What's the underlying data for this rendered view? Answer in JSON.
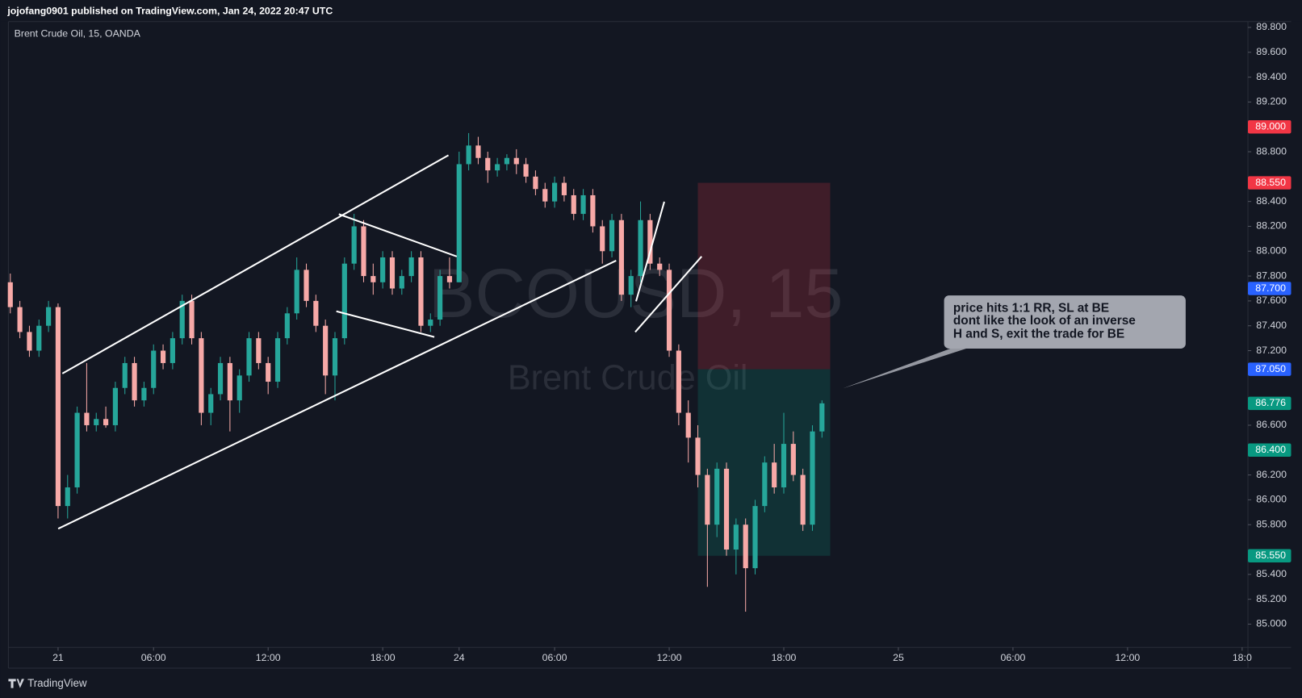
{
  "chart_data": {
    "type": "candlestick",
    "header": "jojofang0901 published on TradingView.com, Jan 24, 2022 20:47 UTC",
    "title": "Brent Crude Oil, 15, OANDA",
    "watermark_symbol": "BCOUSD, 15",
    "watermark_name": "Brent Crude Oil",
    "footer": "TradingView",
    "up_color": "#26a69a",
    "down_color": "#f7a9a7",
    "xlim": [
      -1.6,
      63.26
    ],
    "xticks": [
      {
        "value": 1,
        "label": "21"
      },
      {
        "value": 6,
        "label": "06:00"
      },
      {
        "value": 12,
        "label": "12:00"
      },
      {
        "value": 18,
        "label": "18:00"
      },
      {
        "value": 22,
        "label": "24"
      },
      {
        "value": 27,
        "label": "06:00"
      },
      {
        "value": 33,
        "label": "12:00"
      },
      {
        "value": 39,
        "label": "18:00"
      },
      {
        "value": 45,
        "label": "25"
      },
      {
        "value": 51,
        "label": "06:00"
      },
      {
        "value": 57,
        "label": "12:00"
      },
      {
        "value": 63,
        "label": "18:0"
      }
    ],
    "ylim": [
      84.813,
      89.847
    ],
    "yticks": [
      {
        "value": 89.8,
        "label": "89.800"
      },
      {
        "value": 89.6,
        "label": "89.600"
      },
      {
        "value": 89.4,
        "label": "89.400"
      },
      {
        "value": 89.2,
        "label": "89.200"
      },
      {
        "value": 88.8,
        "label": "88.800"
      },
      {
        "value": 88.4,
        "label": "88.400"
      },
      {
        "value": 88.2,
        "label": "88.200"
      },
      {
        "value": 88.0,
        "label": "88.000"
      },
      {
        "value": 87.8,
        "label": "87.800"
      },
      {
        "value": 87.6,
        "label": "87.600"
      },
      {
        "value": 87.4,
        "label": "87.400"
      },
      {
        "value": 87.2,
        "label": "87.200"
      },
      {
        "value": 86.6,
        "label": "86.600"
      },
      {
        "value": 86.2,
        "label": "86.200"
      },
      {
        "value": 86.0,
        "label": "86.000"
      },
      {
        "value": 85.8,
        "label": "85.800"
      },
      {
        "value": 85.4,
        "label": "85.400"
      },
      {
        "value": 85.2,
        "label": "85.200"
      },
      {
        "value": 85.0,
        "label": "85.000"
      }
    ],
    "price_labels": [
      {
        "value": 89.0,
        "label": "89.000",
        "color": "#f23645"
      },
      {
        "value": 88.55,
        "label": "88.550",
        "color": "#f23645"
      },
      {
        "value": 87.7,
        "label": "87.700",
        "color": "#2962ff"
      },
      {
        "value": 87.05,
        "label": "87.050",
        "color": "#2962ff"
      },
      {
        "value": 86.776,
        "label": "86.776",
        "color": "#089981"
      },
      {
        "value": 86.4,
        "label": "86.400",
        "color": "#089981"
      },
      {
        "value": 85.55,
        "label": "85.550",
        "color": "#089981"
      }
    ],
    "position": {
      "stop": 88.55,
      "entry": 87.05,
      "target": 85.55,
      "x": [
        34.5,
        41.43
      ]
    },
    "annotation": [
      "price hits 1:1 RR, SL at BE",
      "dont like the look of an inverse",
      "H and S, exit the trade for BE"
    ],
    "candles": [
      [
        -1.5,
        87.75,
        87.82,
        87.5,
        87.55
      ],
      [
        -1,
        87.55,
        87.6,
        87.3,
        87.35
      ],
      [
        -0.5,
        87.35,
        87.4,
        87.15,
        87.2
      ],
      [
        0,
        87.2,
        87.45,
        87.15,
        87.4
      ],
      [
        0.5,
        87.4,
        87.6,
        87.35,
        87.55
      ],
      [
        1,
        87.55,
        87.58,
        85.85,
        85.95
      ],
      [
        1.5,
        85.95,
        86.2,
        85.85,
        86.1
      ],
      [
        2,
        86.1,
        86.75,
        86.05,
        86.7
      ],
      [
        2.5,
        86.7,
        87.1,
        86.55,
        86.6
      ],
      [
        3,
        86.6,
        86.7,
        86.55,
        86.65
      ],
      [
        3.5,
        86.65,
        86.75,
        86.58,
        86.6
      ],
      [
        4,
        86.6,
        86.95,
        86.55,
        86.9
      ],
      [
        4.5,
        86.9,
        87.15,
        86.85,
        87.1
      ],
      [
        5,
        87.1,
        87.15,
        86.75,
        86.8
      ],
      [
        5.5,
        86.8,
        86.95,
        86.75,
        86.9
      ],
      [
        6,
        86.9,
        87.25,
        86.85,
        87.2
      ],
      [
        6.5,
        87.2,
        87.25,
        87.05,
        87.1
      ],
      [
        7,
        87.1,
        87.35,
        87.05,
        87.3
      ],
      [
        7.5,
        87.3,
        87.65,
        87.25,
        87.6
      ],
      [
        8,
        87.6,
        87.65,
        87.25,
        87.3
      ],
      [
        8.5,
        87.3,
        87.35,
        86.6,
        86.7
      ],
      [
        9,
        86.7,
        86.9,
        86.6,
        86.85
      ],
      [
        9.5,
        86.85,
        87.15,
        86.8,
        87.1
      ],
      [
        10,
        87.1,
        87.15,
        86.55,
        86.8
      ],
      [
        10.5,
        86.8,
        87.05,
        86.7,
        87.0
      ],
      [
        11,
        87.0,
        87.35,
        86.95,
        87.3
      ],
      [
        11.5,
        87.3,
        87.35,
        87.05,
        87.1
      ],
      [
        12,
        87.1,
        87.15,
        86.85,
        86.95
      ],
      [
        12.5,
        86.95,
        87.35,
        86.9,
        87.3
      ],
      [
        13,
        87.3,
        87.55,
        87.25,
        87.5
      ],
      [
        13.5,
        87.5,
        87.95,
        87.45,
        87.85
      ],
      [
        14,
        87.85,
        87.9,
        87.55,
        87.6
      ],
      [
        14.5,
        87.6,
        87.65,
        87.35,
        87.4
      ],
      [
        15,
        87.4,
        87.45,
        86.85,
        87.0
      ],
      [
        15.5,
        87.0,
        87.35,
        86.8,
        87.3
      ],
      [
        16,
        87.3,
        87.95,
        87.25,
        87.9
      ],
      [
        16.5,
        87.9,
        88.3,
        87.85,
        88.2
      ],
      [
        17,
        88.2,
        88.25,
        87.75,
        87.8
      ],
      [
        17.5,
        87.8,
        87.9,
        87.65,
        87.75
      ],
      [
        18,
        87.75,
        88.0,
        87.7,
        87.95
      ],
      [
        18.5,
        87.95,
        88.0,
        87.65,
        87.7
      ],
      [
        19,
        87.7,
        87.85,
        87.65,
        87.8
      ],
      [
        19.5,
        87.8,
        88.0,
        87.75,
        87.95
      ],
      [
        20,
        87.95,
        88.0,
        87.35,
        87.4
      ],
      [
        20.5,
        87.4,
        87.5,
        87.35,
        87.45
      ],
      [
        21,
        87.45,
        87.85,
        87.4,
        87.8
      ],
      [
        21.5,
        87.8,
        87.95,
        87.7,
        87.75
      ],
      [
        22,
        87.75,
        88.8,
        87.75,
        88.7
      ],
      [
        22.5,
        88.7,
        88.95,
        88.65,
        88.85
      ],
      [
        23,
        88.85,
        88.92,
        88.7,
        88.75
      ],
      [
        23.5,
        88.75,
        88.8,
        88.55,
        88.65
      ],
      [
        24,
        88.65,
        88.75,
        88.6,
        88.7
      ],
      [
        24.5,
        88.7,
        88.78,
        88.65,
        88.75
      ],
      [
        25,
        88.75,
        88.82,
        88.62,
        88.7
      ],
      [
        25.5,
        88.7,
        88.75,
        88.55,
        88.6
      ],
      [
        26,
        88.6,
        88.65,
        88.45,
        88.5
      ],
      [
        26.5,
        88.5,
        88.55,
        88.35,
        88.4
      ],
      [
        27,
        88.4,
        88.6,
        88.35,
        88.55
      ],
      [
        27.5,
        88.55,
        88.6,
        88.4,
        88.45
      ],
      [
        28,
        88.45,
        88.5,
        88.25,
        88.3
      ],
      [
        28.5,
        88.3,
        88.5,
        88.25,
        88.45
      ],
      [
        29,
        88.45,
        88.5,
        88.15,
        88.2
      ],
      [
        29.5,
        88.2,
        88.25,
        87.9,
        88.0
      ],
      [
        30,
        88.0,
        88.3,
        87.95,
        88.25
      ],
      [
        30.5,
        88.25,
        88.3,
        87.6,
        87.65
      ],
      [
        31,
        87.65,
        87.85,
        87.55,
        87.8
      ],
      [
        31.5,
        87.8,
        88.4,
        87.75,
        88.25
      ],
      [
        32,
        88.25,
        88.3,
        87.85,
        87.9
      ],
      [
        32.5,
        87.9,
        87.95,
        87.8,
        87.85
      ],
      [
        33,
        87.85,
        87.9,
        87.15,
        87.2
      ],
      [
        33.5,
        87.2,
        87.25,
        86.6,
        86.7
      ],
      [
        34,
        86.7,
        86.8,
        86.3,
        86.5
      ],
      [
        34.5,
        86.5,
        86.6,
        86.1,
        86.2
      ],
      [
        35,
        86.2,
        86.25,
        85.3,
        85.8
      ],
      [
        35.5,
        85.8,
        86.3,
        85.7,
        86.25
      ],
      [
        36,
        86.25,
        86.3,
        85.55,
        85.6
      ],
      [
        36.5,
        85.6,
        85.85,
        85.4,
        85.8
      ],
      [
        37,
        85.8,
        85.85,
        85.1,
        85.45
      ],
      [
        37.5,
        85.45,
        86.0,
        85.4,
        85.95
      ],
      [
        38,
        85.95,
        86.35,
        85.9,
        86.3
      ],
      [
        38.5,
        86.3,
        86.45,
        86.05,
        86.1
      ],
      [
        39,
        86.1,
        86.7,
        86.05,
        86.45
      ],
      [
        39.5,
        86.45,
        86.55,
        86.15,
        86.2
      ],
      [
        40,
        86.2,
        86.25,
        85.75,
        85.8
      ],
      [
        40.5,
        85.8,
        86.6,
        85.75,
        86.55
      ],
      [
        41,
        86.55,
        86.8,
        86.5,
        86.776
      ]
    ]
  }
}
